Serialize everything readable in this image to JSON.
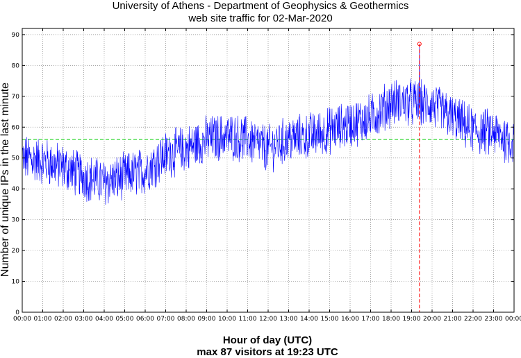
{
  "chart_data": {
    "type": "line",
    "title": "University of Athens - Department of Geophysics & Geothermics",
    "subtitle": "web site traffic for 02-Mar-2020",
    "xlabel": "Hour of day (UTC)",
    "ylabel": "Number of unique IPs in the last minute",
    "footer": "max 87 visitors at 19:23 UTC",
    "x_ticks": [
      "00:00",
      "01:00",
      "02:00",
      "03:00",
      "04:00",
      "05:00",
      "06:00",
      "07:00",
      "08:00",
      "09:00",
      "10:00",
      "11:00",
      "12:00",
      "13:00",
      "14:00",
      "15:00",
      "16:00",
      "17:00",
      "18:00",
      "19:00",
      "20:00",
      "21:00",
      "22:00",
      "23:00",
      "00:00"
    ],
    "y_ticks": [
      0,
      10,
      20,
      30,
      40,
      50,
      60,
      70,
      80,
      90
    ],
    "xlim_hours": [
      0,
      24
    ],
    "ylim": [
      0,
      92
    ],
    "grid": true,
    "mean_line": 56,
    "max": {
      "value": 87,
      "time": "19:23",
      "hour": 19.383
    },
    "series": [
      {
        "color": "#0000ff",
        "hourly_levels": [
          {
            "hour": 0,
            "value": 50
          },
          {
            "hour": 1,
            "value": 49
          },
          {
            "hour": 2,
            "value": 47
          },
          {
            "hour": 3,
            "value": 44
          },
          {
            "hour": 4,
            "value": 42
          },
          {
            "hour": 5,
            "value": 44
          },
          {
            "hour": 6,
            "value": 46
          },
          {
            "hour": 7,
            "value": 51
          },
          {
            "hour": 8,
            "value": 53
          },
          {
            "hour": 9,
            "value": 56
          },
          {
            "hour": 10,
            "value": 57
          },
          {
            "hour": 11,
            "value": 56
          },
          {
            "hour": 12,
            "value": 53
          },
          {
            "hour": 13,
            "value": 56
          },
          {
            "hour": 14,
            "value": 57
          },
          {
            "hour": 15,
            "value": 59
          },
          {
            "hour": 16,
            "value": 61
          },
          {
            "hour": 17,
            "value": 63
          },
          {
            "hour": 18,
            "value": 68
          },
          {
            "hour": 19,
            "value": 68
          },
          {
            "hour": 20,
            "value": 67
          },
          {
            "hour": 21,
            "value": 63
          },
          {
            "hour": 22,
            "value": 59
          },
          {
            "hour": 23,
            "value": 58
          },
          {
            "hour": 24,
            "value": 55
          }
        ],
        "noise_range": 7
      }
    ],
    "colors": {
      "series": "#0000ff",
      "mean_line": "#00cc00",
      "max_marker": "#ff0000",
      "grid": "#888888"
    }
  }
}
